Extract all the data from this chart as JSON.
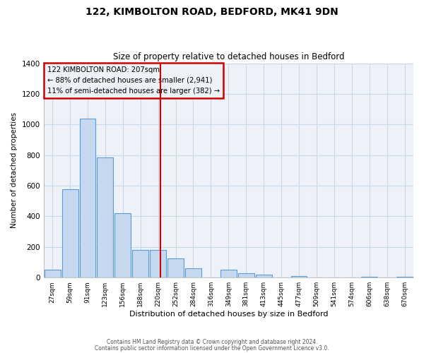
{
  "title": "122, KIMBOLTON ROAD, BEDFORD, MK41 9DN",
  "subtitle": "Size of property relative to detached houses in Bedford",
  "xlabel": "Distribution of detached houses by size in Bedford",
  "ylabel": "Number of detached properties",
  "footnote1": "Contains HM Land Registry data © Crown copyright and database right 2024.",
  "footnote2": "Contains public sector information licensed under the Open Government Licence v3.0.",
  "bar_labels": [
    "27sqm",
    "59sqm",
    "91sqm",
    "123sqm",
    "156sqm",
    "188sqm",
    "220sqm",
    "252sqm",
    "284sqm",
    "316sqm",
    "349sqm",
    "381sqm",
    "413sqm",
    "445sqm",
    "477sqm",
    "509sqm",
    "541sqm",
    "574sqm",
    "606sqm",
    "638sqm",
    "670sqm"
  ],
  "bar_values": [
    50,
    575,
    1040,
    785,
    420,
    180,
    180,
    125,
    60,
    0,
    50,
    30,
    20,
    0,
    10,
    0,
    0,
    0,
    5,
    0,
    5
  ],
  "bar_color": "#c5d8f0",
  "bar_edge_color": "#5b9bd5",
  "ylim": [
    0,
    1400
  ],
  "yticks": [
    0,
    200,
    400,
    600,
    800,
    1000,
    1200,
    1400
  ],
  "vline_x": 6.15,
  "vline_color": "#cc0000",
  "annotation_title": "122 KIMBOLTON ROAD: 207sqm",
  "annotation_line1": "← 88% of detached houses are smaller (2,941)",
  "annotation_line2": "11% of semi-detached houses are larger (382) →",
  "annotation_box_color": "#cc0000",
  "plot_bg_color": "#eef2f8",
  "fig_bg_color": "#ffffff",
  "grid_color": "#c8d8e8"
}
